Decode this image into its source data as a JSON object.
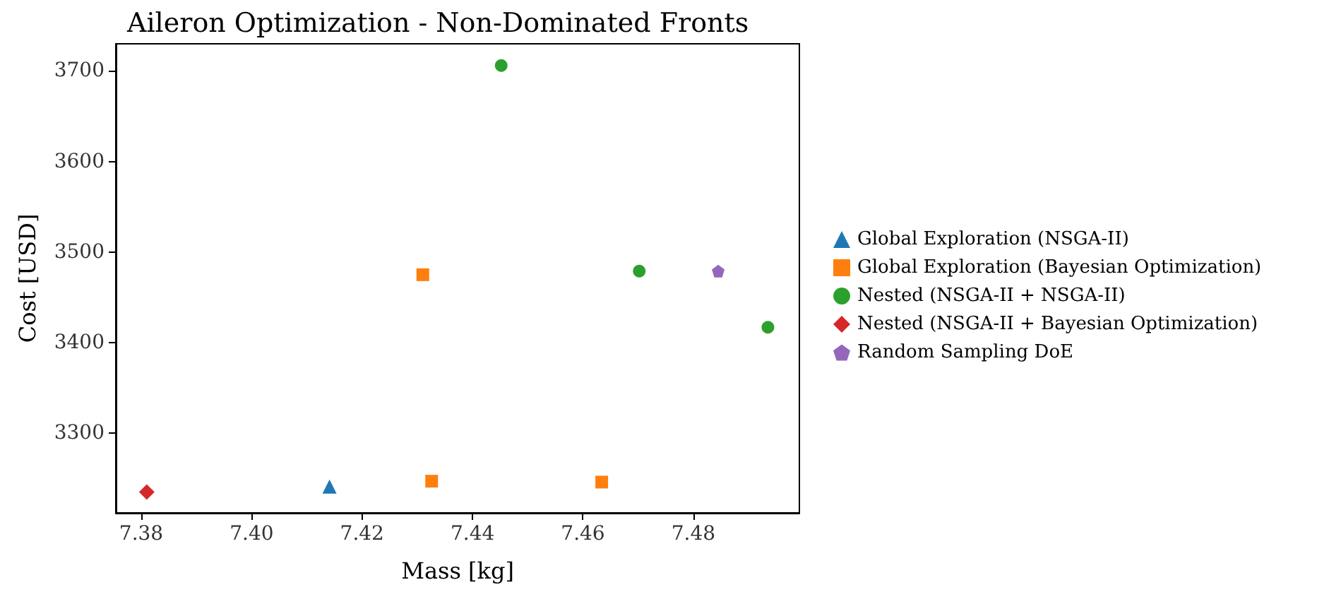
{
  "chart_data": {
    "type": "scatter",
    "title": "Aileron Optimization - Non-Dominated Fronts",
    "xlabel": "Mass [kg]",
    "ylabel": "Cost [USD]",
    "xlim": [
      7.3754,
      7.4992
    ],
    "xticks": [
      {
        "value": 7.38,
        "label": "7.38"
      },
      {
        "value": 7.4,
        "label": "7.40"
      },
      {
        "value": 7.42,
        "label": "7.42"
      },
      {
        "value": 7.44,
        "label": "7.44"
      },
      {
        "value": 7.46,
        "label": "7.46"
      },
      {
        "value": 7.48,
        "label": "7.48"
      }
    ],
    "ylim": [
      3212,
      3730
    ],
    "yticks": [
      3300,
      3400,
      3500,
      3600,
      3700
    ],
    "grid": false,
    "legend": "right",
    "series": [
      {
        "name": "Global Exploration (NSGA-II)",
        "color": "#1f77b4",
        "marker": "triangle",
        "x": [
          7.4141
        ],
        "values": [
          3241
        ]
      },
      {
        "name": "Global Exploration (Bayesian Optimization)",
        "color": "#ff7f0e",
        "marker": "square",
        "x": [
          7.431,
          7.4326,
          7.4634
        ],
        "values": [
          3475,
          3247,
          3246
        ]
      },
      {
        "name": "Nested (NSGA-II + NSGA-II)",
        "color": "#2ca02c",
        "marker": "circle",
        "x": [
          7.4452,
          7.4702,
          7.4935
        ],
        "values": [
          3706,
          3479,
          3417
        ]
      },
      {
        "name": "Nested (NSGA-II + Bayesian Optimization)",
        "color": "#d62728",
        "marker": "diamond",
        "x": [
          7.381
        ],
        "values": [
          3235
        ]
      },
      {
        "name": "Random Sampling DoE",
        "color": "#9467bd",
        "x": [
          7.4845
        ],
        "values": [
          3479
        ]
      }
    ]
  }
}
